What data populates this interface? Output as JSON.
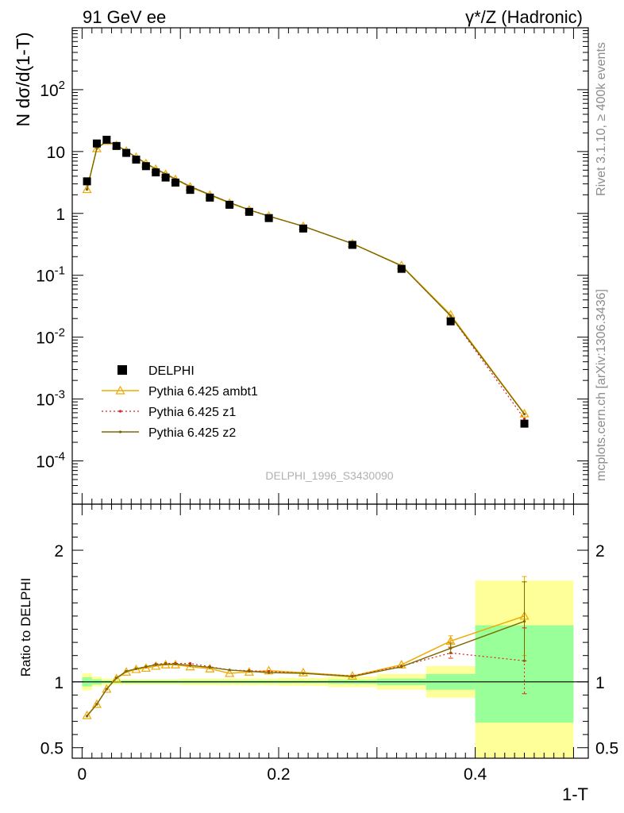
{
  "header": {
    "left": "91 GeV ee",
    "right": "γ*/Z (Hadronic)"
  },
  "side_labels": {
    "rivet": "Rivet 3.1.10, ≥ 400k events",
    "mcplots": "mcplots.cern.ch [arXiv:1306.3436]"
  },
  "watermark": "DELPHI_1996_S3430090",
  "chart_data": [
    {
      "type": "scatter",
      "scale": "log-y",
      "ylabel": "N dσ/d(1-T)",
      "xlim": [
        -0.01,
        0.515
      ],
      "ylim": [
        2e-05,
        1000
      ],
      "y_ticks": [
        "10^-4",
        "10^-3",
        "10^-2",
        "10^-1",
        "1",
        "10",
        "10^2"
      ],
      "legend": [
        "DELPHI",
        "Pythia 6.425 ambt1",
        "Pythia 6.425 z1",
        "Pythia 6.425 z2"
      ],
      "legend_placement": "bottom-left",
      "series": [
        {
          "name": "DELPHI",
          "color": "#000000",
          "x": [
            0.005,
            0.015,
            0.025,
            0.035,
            0.045,
            0.055,
            0.065,
            0.075,
            0.085,
            0.095,
            0.11,
            0.13,
            0.15,
            0.17,
            0.19,
            0.225,
            0.275,
            0.325,
            0.375,
            0.45
          ],
          "y": [
            3.3,
            13.5,
            15.5,
            12.3,
            9.5,
            7.4,
            5.8,
            4.6,
            3.8,
            3.15,
            2.4,
            1.8,
            1.38,
            1.06,
            0.84,
            0.57,
            0.31,
            0.127,
            0.018,
            0.0004
          ]
        },
        {
          "name": "Pythia 6.425 ambt1",
          "color": "#f0a800",
          "x": [
            0.005,
            0.015,
            0.025,
            0.035,
            0.045,
            0.055,
            0.065,
            0.075,
            0.085,
            0.095,
            0.11,
            0.13,
            0.15,
            0.17,
            0.19,
            0.225,
            0.275,
            0.325,
            0.375,
            0.45
          ],
          "y": [
            2.45,
            11.2,
            14.7,
            12.6,
            10.2,
            8.1,
            6.4,
            5.2,
            4.3,
            3.55,
            2.68,
            1.98,
            1.47,
            1.14,
            0.91,
            0.62,
            0.325,
            0.144,
            0.023,
            0.00058
          ]
        },
        {
          "name": "Pythia 6.425 z1",
          "color": "#e02020",
          "x": [
            0.005,
            0.015,
            0.025,
            0.035,
            0.045,
            0.055,
            0.065,
            0.075,
            0.085,
            0.095,
            0.11,
            0.13,
            0.15,
            0.17,
            0.19,
            0.225,
            0.275,
            0.325,
            0.375,
            0.45
          ],
          "y": [
            2.45,
            11.2,
            14.7,
            12.6,
            10.2,
            8.1,
            6.45,
            5.25,
            4.35,
            3.6,
            2.75,
            2.02,
            1.5,
            1.15,
            0.91,
            0.62,
            0.325,
            0.142,
            0.022,
            0.00048
          ]
        },
        {
          "name": "Pythia 6.425 z2",
          "color": "#7a6a00",
          "x": [
            0.005,
            0.015,
            0.025,
            0.035,
            0.045,
            0.055,
            0.065,
            0.075,
            0.085,
            0.095,
            0.11,
            0.13,
            0.15,
            0.17,
            0.19,
            0.225,
            0.275,
            0.325,
            0.375,
            0.45
          ],
          "y": [
            2.45,
            11.2,
            14.7,
            12.6,
            10.2,
            8.1,
            6.45,
            5.25,
            4.35,
            3.6,
            2.72,
            2.01,
            1.5,
            1.14,
            0.9,
            0.62,
            0.325,
            0.142,
            0.022,
            0.00057
          ]
        }
      ]
    },
    {
      "type": "line",
      "ylabel": "Ratio to DELPHI",
      "xlabel": "1-T",
      "xlim": [
        -0.01,
        0.515
      ],
      "ylim": [
        0.42,
        2.35
      ],
      "x_ticks": [
        "0",
        "0.2",
        "0.4"
      ],
      "y_ticks": [
        "0.5",
        "1",
        "2"
      ],
      "bands": {
        "edges": [
          0.0,
          0.01,
          0.02,
          0.03,
          0.04,
          0.05,
          0.06,
          0.07,
          0.08,
          0.09,
          0.1,
          0.12,
          0.14,
          0.16,
          0.18,
          0.2,
          0.25,
          0.3,
          0.35,
          0.4,
          0.5
        ],
        "stat_lo": [
          0.965,
          0.98,
          0.99,
          0.99,
          0.99,
          0.99,
          0.99,
          0.99,
          0.99,
          0.99,
          0.99,
          0.99,
          0.99,
          0.99,
          0.99,
          0.99,
          0.985,
          0.975,
          0.94,
          0.69
        ],
        "stat_hi": [
          1.035,
          1.02,
          1.01,
          1.01,
          1.01,
          1.01,
          1.01,
          1.01,
          1.01,
          1.01,
          1.01,
          1.01,
          1.01,
          1.01,
          1.01,
          1.01,
          1.015,
          1.025,
          1.06,
          1.43
        ],
        "tot_lo": [
          0.935,
          0.965,
          0.975,
          0.98,
          0.98,
          0.98,
          0.98,
          0.98,
          0.98,
          0.98,
          0.975,
          0.975,
          0.975,
          0.975,
          0.975,
          0.97,
          0.96,
          0.94,
          0.88,
          0.42
        ],
        "tot_hi": [
          1.065,
          1.04,
          1.025,
          1.02,
          1.02,
          1.02,
          1.02,
          1.02,
          1.02,
          1.02,
          1.025,
          1.025,
          1.025,
          1.025,
          1.025,
          1.03,
          1.04,
          1.06,
          1.12,
          1.77
        ]
      },
      "series": [
        {
          "name": "Pythia 6.425 ambt1",
          "color": "#f0a800",
          "x": [
            0.005,
            0.015,
            0.025,
            0.035,
            0.045,
            0.055,
            0.065,
            0.075,
            0.085,
            0.095,
            0.11,
            0.13,
            0.15,
            0.17,
            0.19,
            0.225,
            0.275,
            0.325,
            0.375,
            0.45
          ],
          "y": [
            0.745,
            0.83,
            0.945,
            1.025,
            1.075,
            1.095,
            1.105,
            1.12,
            1.13,
            1.13,
            1.115,
            1.1,
            1.065,
            1.075,
            1.085,
            1.07,
            1.045,
            1.13,
            1.31,
            1.5
          ],
          "err": [
            0.005,
            0.005,
            0.005,
            0.005,
            0.005,
            0.005,
            0.005,
            0.005,
            0.005,
            0.005,
            0.005,
            0.005,
            0.005,
            0.005,
            0.005,
            0.005,
            0.01,
            0.015,
            0.04,
            0.3
          ]
        },
        {
          "name": "Pythia 6.425 z1",
          "color": "#e02020",
          "x": [
            0.005,
            0.015,
            0.025,
            0.035,
            0.045,
            0.055,
            0.065,
            0.075,
            0.085,
            0.095,
            0.11,
            0.13,
            0.15,
            0.17,
            0.19,
            0.225,
            0.275,
            0.325,
            0.375,
            0.45
          ],
          "y": [
            0.74,
            0.83,
            0.945,
            1.03,
            1.08,
            1.1,
            1.115,
            1.135,
            1.14,
            1.14,
            1.14,
            1.115,
            1.09,
            1.085,
            1.08,
            1.065,
            1.045,
            1.12,
            1.22,
            1.16
          ],
          "err": [
            0.005,
            0.005,
            0.005,
            0.005,
            0.005,
            0.005,
            0.005,
            0.005,
            0.005,
            0.005,
            0.005,
            0.005,
            0.005,
            0.005,
            0.005,
            0.005,
            0.01,
            0.015,
            0.04,
            0.25
          ]
        },
        {
          "name": "Pythia 6.425 z2",
          "color": "#7a6a00",
          "x": [
            0.005,
            0.015,
            0.025,
            0.035,
            0.045,
            0.055,
            0.065,
            0.075,
            0.085,
            0.095,
            0.11,
            0.13,
            0.15,
            0.17,
            0.19,
            0.225,
            0.275,
            0.325,
            0.375,
            0.45
          ],
          "y": [
            0.74,
            0.83,
            0.945,
            1.03,
            1.08,
            1.1,
            1.115,
            1.13,
            1.135,
            1.135,
            1.125,
            1.11,
            1.09,
            1.08,
            1.07,
            1.065,
            1.04,
            1.115,
            1.255,
            1.46
          ],
          "err": [
            0.005,
            0.005,
            0.005,
            0.005,
            0.005,
            0.005,
            0.005,
            0.005,
            0.005,
            0.005,
            0.005,
            0.005,
            0.005,
            0.005,
            0.005,
            0.005,
            0.01,
            0.015,
            0.04,
            0.3
          ]
        }
      ]
    }
  ]
}
